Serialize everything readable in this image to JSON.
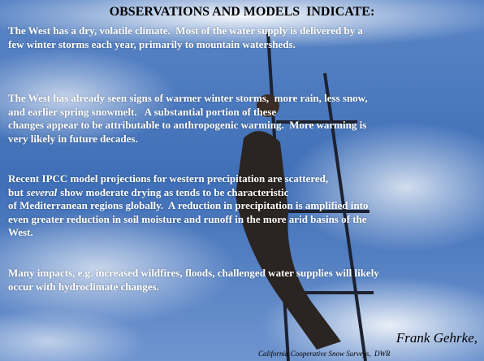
{
  "title": "OBSERVATIONS AND MODELS  INDICATE:",
  "paragraphs": [
    {
      "lines": [
        "The West has a dry, volatile climate.  Most of the water supply is delivered by a",
        "few winter storms each year, primarily to mountain watersheds."
      ]
    },
    {
      "lines": [
        "The West has already seen signs of warmer winter storms,  more rain, less snow,",
        "and earlier spring snowmelt.   A substantial portion of these",
        "changes appear to be attributable to anthropogenic warming.  More warming is",
        "very likely in future decades."
      ]
    },
    {
      "lines": [
        "Recent IPCC model projections for western precipitation are scattered,",
        [
          "but",
          "several",
          "show moderate drying as tends to be characteristic"
        ],
        "of Mediterranean regions globally.  A reduction in precipitation is amplified into",
        "even greater reduction in soil moisture and runoff in the more arid basins of the",
        "West."
      ]
    },
    {
      "lines": [
        "Many impacts, e.g. increased wildfires, floods, challenged water supplies will likely",
        "occur with hydroclimate changes."
      ]
    }
  ],
  "credit": {
    "name": "Frank Gehrke,",
    "affiliation": "California Cooperative Snow Surveys,  DWR"
  }
}
